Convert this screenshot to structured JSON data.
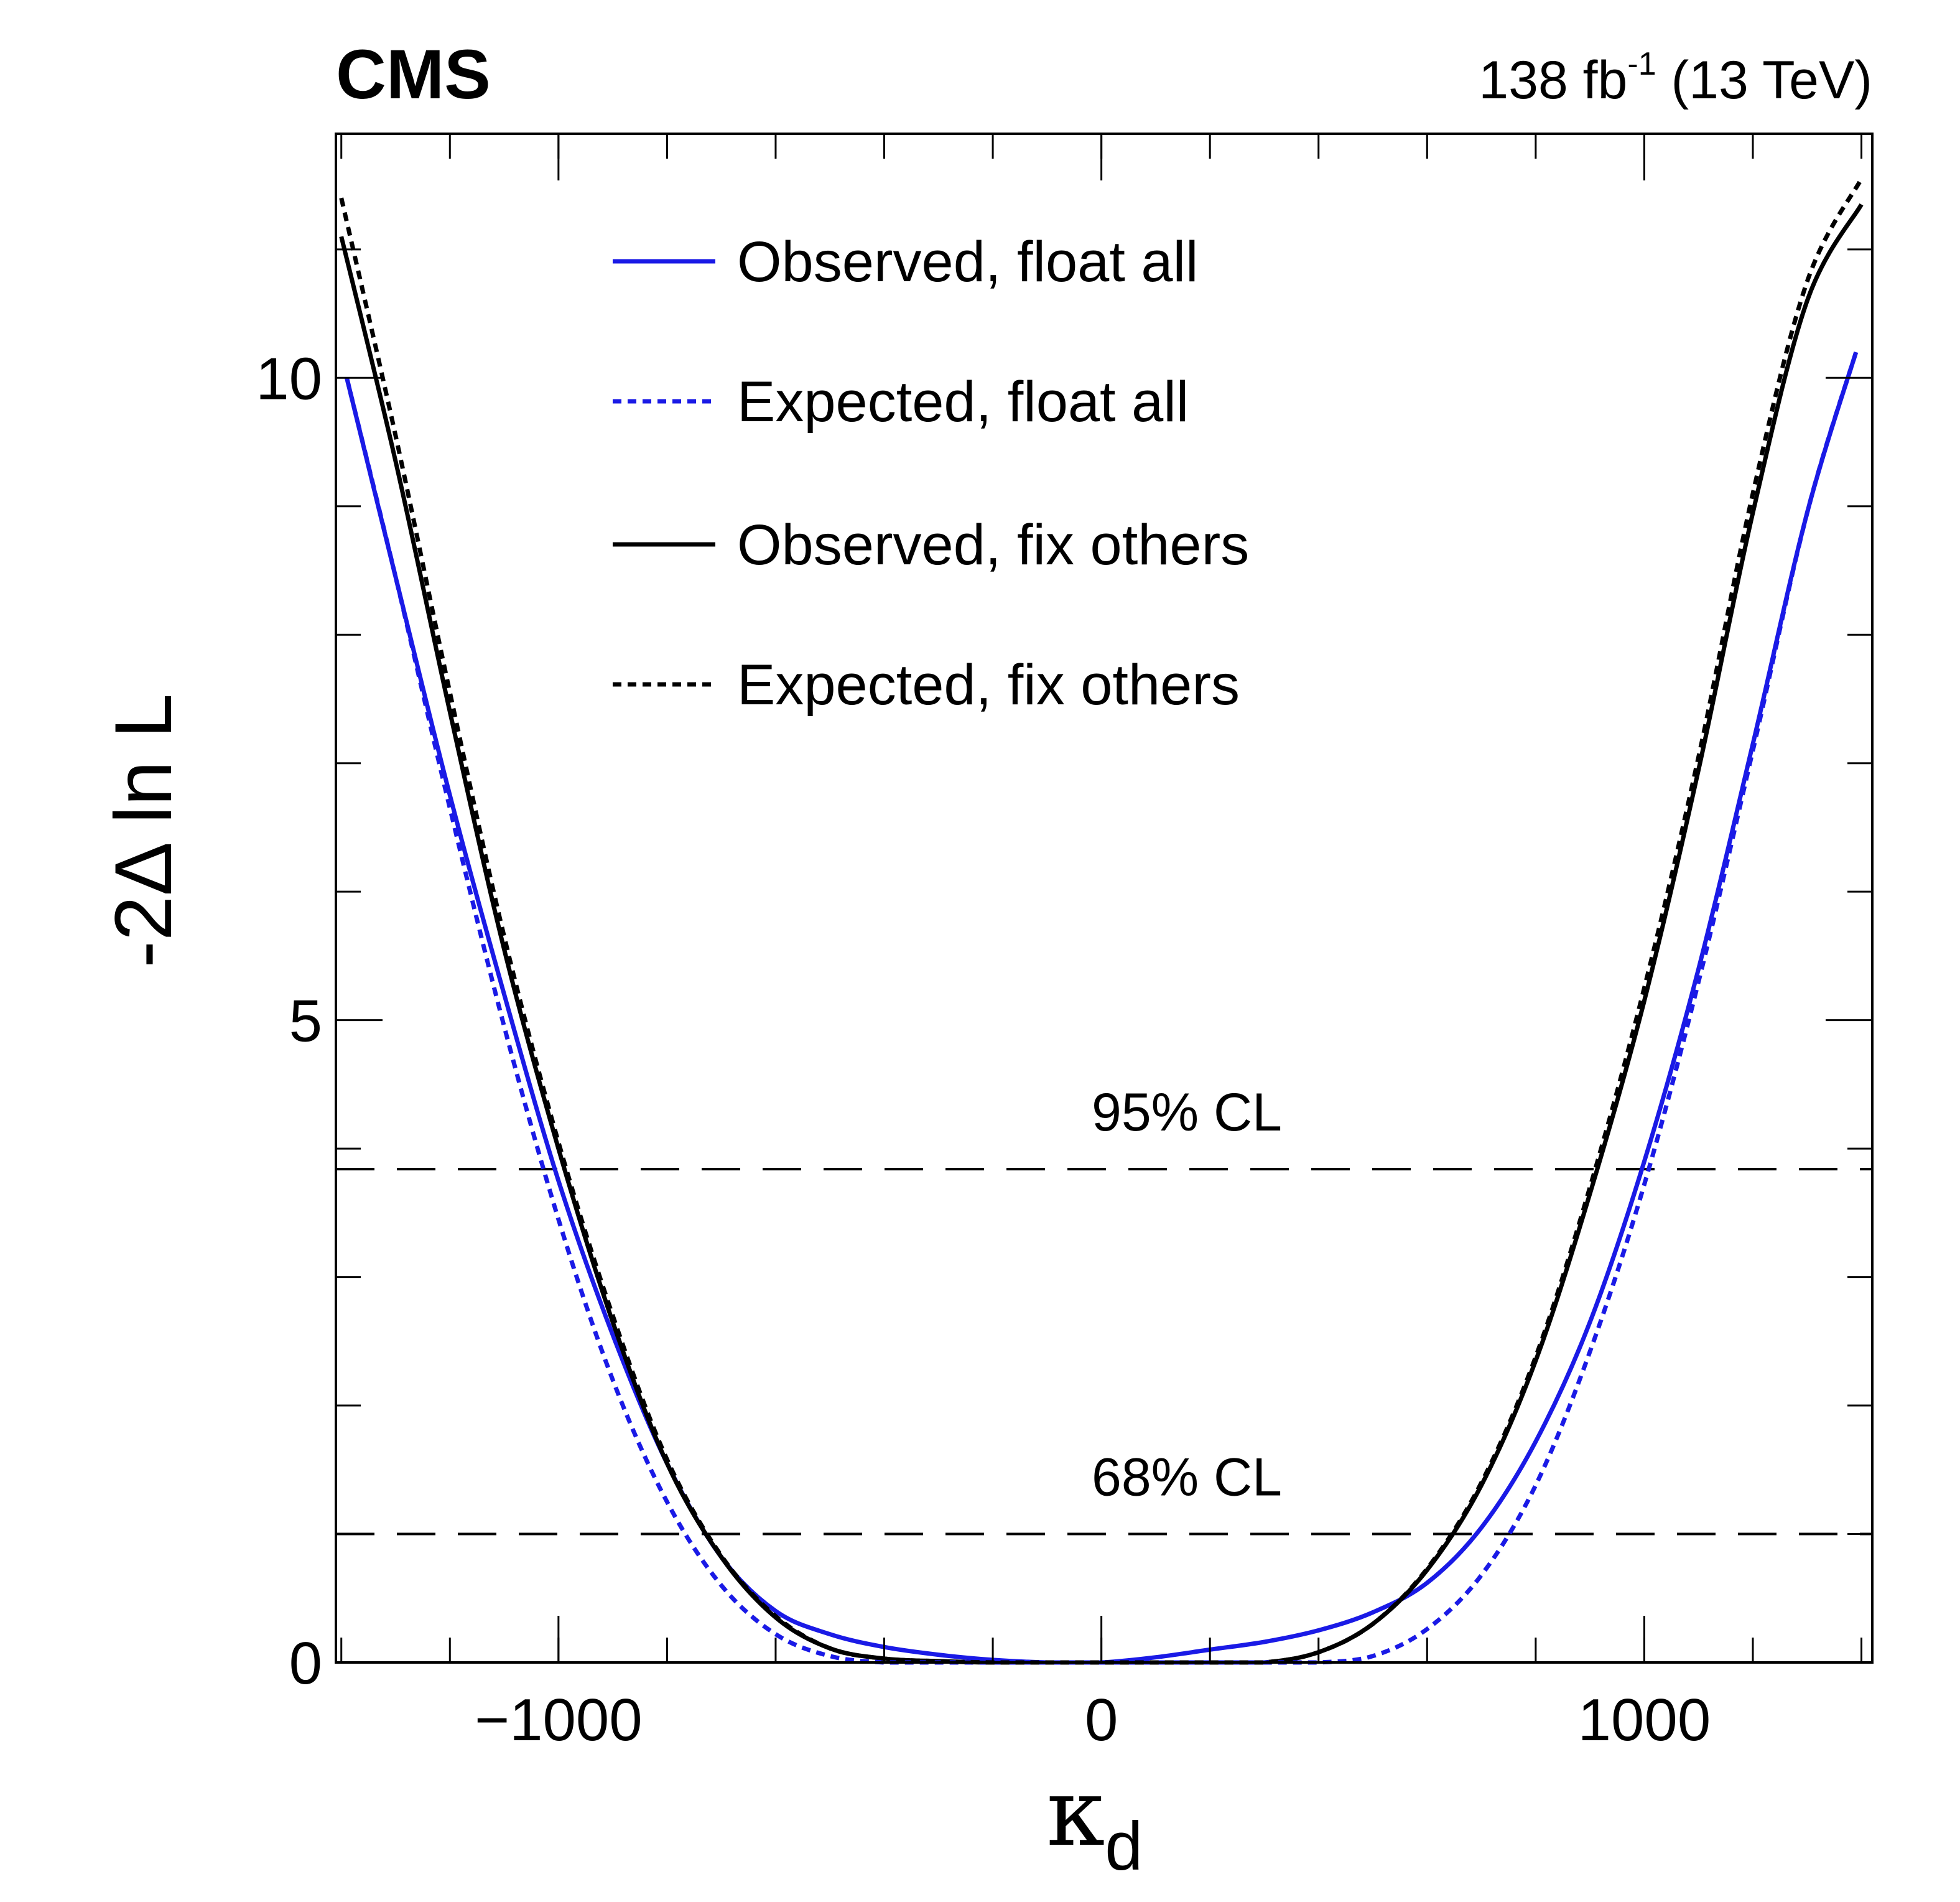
{
  "header": {
    "experiment": "CMS",
    "lumi_prefix": "138 fb",
    "lumi_exponent": "-1",
    "lumi_suffix": " (13 TeV)"
  },
  "axes": {
    "ylabel": "-2Δ ln L",
    "xlabel_main": "κ",
    "xlabel_sub": "d"
  },
  "chart_data": {
    "type": "line",
    "title": "",
    "xlabel": "κd",
    "ylabel": "-2Δ ln L",
    "xlim": [
      -1410,
      1420
    ],
    "ylim": [
      0,
      11.9
    ],
    "x_ticks": [
      -1000,
      0,
      1000
    ],
    "x_tick_labels": [
      "−1000",
      "0",
      "1000"
    ],
    "y_ticks": [
      0,
      5,
      10
    ],
    "y_tick_labels": [
      "0",
      "5",
      "10"
    ],
    "legend": {
      "position": "top-center"
    },
    "grid": false,
    "series": [
      {
        "name": "Observed, float all",
        "color": "#1a1ae6",
        "style": "solid",
        "x": [
          -1390,
          -1300,
          -1200,
          -1100,
          -1000,
          -900,
          -800,
          -700,
          -600,
          -500,
          -400,
          -300,
          -200,
          -100,
          0,
          100,
          200,
          300,
          400,
          500,
          600,
          700,
          800,
          900,
          1000,
          1100,
          1200,
          1300,
          1390
        ],
        "y": [
          10.0,
          8.45,
          6.75,
          5.2,
          3.75,
          2.55,
          1.55,
          0.82,
          0.4,
          0.22,
          0.12,
          0.06,
          0.02,
          0.0,
          0.0,
          0.04,
          0.1,
          0.16,
          0.25,
          0.39,
          0.62,
          1.05,
          1.72,
          2.65,
          3.9,
          5.4,
          7.15,
          8.95,
          10.2
        ]
      },
      {
        "name": "Expected, float all",
        "color": "#1a1ae6",
        "style": "dotted",
        "x": [
          -1390,
          -1300,
          -1200,
          -1100,
          -1000,
          -900,
          -800,
          -700,
          -600,
          -500,
          -400,
          -300,
          -200,
          -100,
          0,
          100,
          200,
          300,
          400,
          500,
          600,
          700,
          800,
          900,
          1000,
          1100,
          1200,
          1300,
          1390
        ],
        "y": [
          10.0,
          8.45,
          6.65,
          4.95,
          3.45,
          2.2,
          1.25,
          0.6,
          0.22,
          0.05,
          0.0,
          0.0,
          0.0,
          0.0,
          0.0,
          0.0,
          0.0,
          0.0,
          0.0,
          0.05,
          0.26,
          0.68,
          1.38,
          2.42,
          3.72,
          5.3,
          7.1,
          8.95,
          10.2
        ]
      },
      {
        "name": "Observed, fix others",
        "color": "#000000",
        "style": "solid",
        "x": [
          -1400,
          -1300,
          -1200,
          -1100,
          -1000,
          -900,
          -800,
          -700,
          -600,
          -500,
          -400,
          -300,
          -200,
          -100,
          0,
          100,
          200,
          300,
          400,
          500,
          600,
          700,
          800,
          900,
          1000,
          1100,
          1200,
          1300,
          1400
        ],
        "y": [
          11.1,
          9.35,
          7.4,
          5.55,
          4.0,
          2.65,
          1.55,
          0.82,
          0.35,
          0.11,
          0.03,
          0.01,
          0.0,
          0.0,
          0.0,
          0.0,
          0.0,
          0.0,
          0.08,
          0.3,
          0.72,
          1.38,
          2.35,
          3.65,
          5.15,
          6.95,
          8.95,
          10.6,
          11.35
        ]
      },
      {
        "name": "Expected, fix others",
        "color": "#000000",
        "style": "dotted",
        "x": [
          -1400,
          -1300,
          -1200,
          -1100,
          -1000,
          -900,
          -800,
          -700,
          -600,
          -500,
          -400,
          -300,
          -200,
          -100,
          0,
          100,
          200,
          300,
          400,
          500,
          600,
          700,
          800,
          900,
          1000,
          1100,
          1200,
          1300,
          1400
        ],
        "y": [
          11.4,
          9.55,
          7.55,
          5.65,
          4.05,
          2.7,
          1.58,
          0.83,
          0.36,
          0.11,
          0.03,
          0.01,
          0.0,
          0.0,
          0.0,
          0.0,
          0.0,
          0.0,
          0.08,
          0.3,
          0.73,
          1.4,
          2.38,
          3.7,
          5.25,
          7.05,
          9.1,
          10.75,
          11.55
        ]
      }
    ],
    "reference_lines": [
      {
        "label": "95% CL",
        "y": 3.84
      },
      {
        "label": "68% CL",
        "y": 1.0
      }
    ]
  }
}
